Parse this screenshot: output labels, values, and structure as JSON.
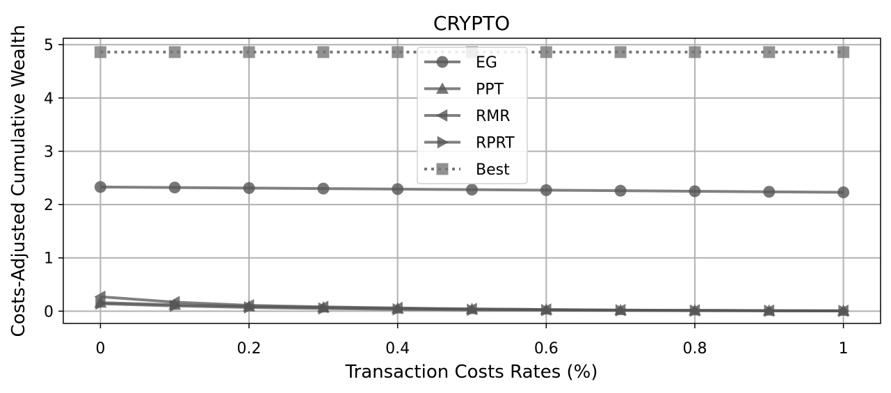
{
  "chart_data": {
    "type": "line",
    "title": "CRYPTO",
    "xlabel": "Transaction Costs Rates (%)",
    "ylabel": "Costs-Adjusted Cumulative Wealth",
    "x": [
      0,
      0.1,
      0.2,
      0.3,
      0.4,
      0.5,
      0.6,
      0.7,
      0.8,
      0.9,
      1
    ],
    "xticks": [
      0,
      0.2,
      0.4,
      0.6,
      0.8,
      1
    ],
    "xtick_labels": [
      "0",
      "0.2",
      "0.4",
      "0.6",
      "0.8",
      "1"
    ],
    "yticks": [
      0,
      1,
      2,
      3,
      4,
      5
    ],
    "ytick_labels": [
      "0",
      "1",
      "2",
      "3",
      "4",
      "5"
    ],
    "xlim": [
      -0.05,
      1.05
    ],
    "ylim": [
      -0.23,
      5.12
    ],
    "grid": true,
    "legend_position": "top-center",
    "series": [
      {
        "name": "EG",
        "marker": "circle",
        "linestyle": "solid",
        "color": "#555555",
        "values": [
          2.33,
          2.32,
          2.31,
          2.3,
          2.29,
          2.28,
          2.27,
          2.26,
          2.25,
          2.24,
          2.23
        ]
      },
      {
        "name": "PPT",
        "marker": "triangle-up",
        "linestyle": "solid",
        "color": "#555555",
        "values": [
          0.16,
          0.12,
          0.09,
          0.07,
          0.05,
          0.04,
          0.03,
          0.02,
          0.015,
          0.01,
          0.007
        ]
      },
      {
        "name": "RMR",
        "marker": "triangle-left",
        "linestyle": "solid",
        "color": "#555555",
        "values": [
          0.27,
          0.17,
          0.11,
          0.08,
          0.06,
          0.04,
          0.03,
          0.02,
          0.015,
          0.01,
          0.007
        ]
      },
      {
        "name": "RPRT",
        "marker": "triangle-right",
        "linestyle": "solid",
        "color": "#555555",
        "values": [
          0.14,
          0.1,
          0.07,
          0.05,
          0.035,
          0.025,
          0.02,
          0.015,
          0.01,
          0.007,
          0.005
        ]
      },
      {
        "name": "Best",
        "marker": "square",
        "linestyle": "dotted",
        "color": "#777777",
        "values": [
          4.86,
          4.86,
          4.86,
          4.86,
          4.86,
          4.86,
          4.86,
          4.86,
          4.86,
          4.86,
          4.86
        ]
      }
    ]
  }
}
